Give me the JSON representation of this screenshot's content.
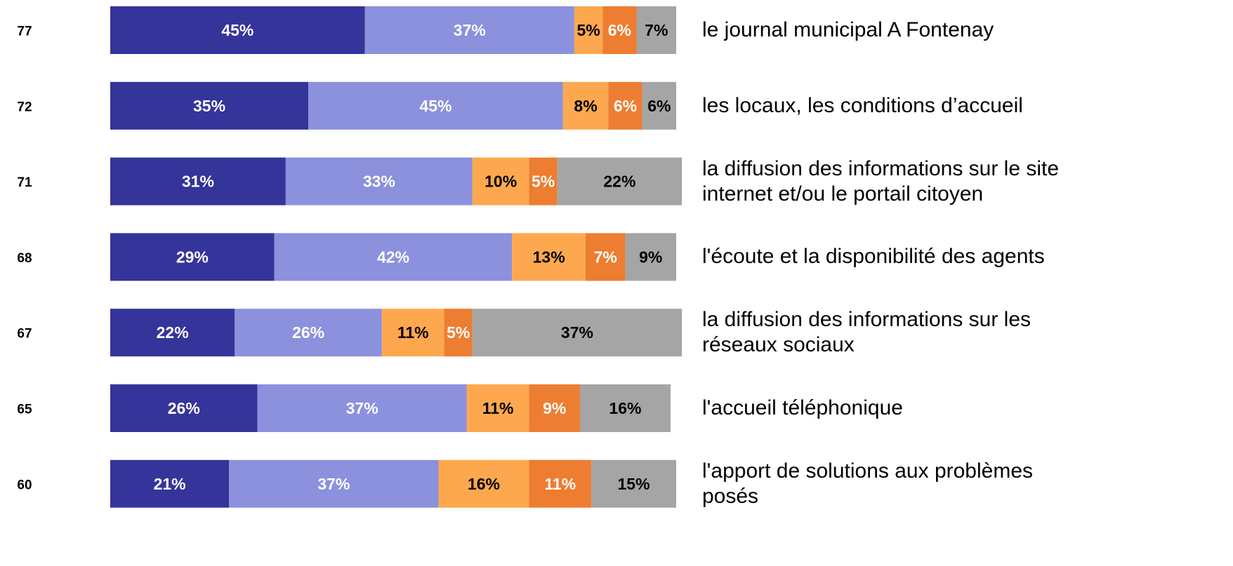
{
  "chart_data": {
    "type": "stacked-bar-horizontal",
    "categories": [
      "le journal municipal A Fontenay",
      "les locaux, les conditions d’accueil",
      "la diffusion des informations sur le site\ninternet et/ou le portail citoyen",
      "l'écoute et la disponibilité des agents",
      "la diffusion des informations sur les\nréseaux sociaux",
      "l'accueil téléphonique",
      "l'apport de solutions aux problèmes\nposés"
    ],
    "scores": [
      77,
      72,
      71,
      68,
      67,
      65,
      60
    ],
    "xlim": [
      0,
      100
    ],
    "series": [
      {
        "color": "#35349a",
        "values": [
          45,
          35,
          31,
          29,
          22,
          26,
          21
        ],
        "value_labels": [
          "45%",
          "35%",
          "31%",
          "29%",
          "22%",
          "26%",
          "21%"
        ]
      },
      {
        "color": "#8b91dd",
        "values": [
          37,
          45,
          33,
          42,
          26,
          37,
          37
        ],
        "value_labels": [
          "37%",
          "45%",
          "33%",
          "42%",
          "26%",
          "37%",
          "37%"
        ]
      },
      {
        "color": "#fda84f",
        "values": [
          5,
          8,
          10,
          13,
          11,
          11,
          16
        ],
        "value_labels": [
          "5%",
          "8%",
          "10%",
          "13%",
          "11%",
          "11%",
          "16%"
        ]
      },
      {
        "color": "#ed7d31",
        "values": [
          6,
          6,
          5,
          7,
          5,
          9,
          11
        ],
        "value_labels": [
          "6%",
          "6%",
          "5%",
          "7%",
          "5%",
          "9%",
          "11%"
        ]
      },
      {
        "color": "#a5a5a5",
        "values": [
          7,
          6,
          22,
          9,
          37,
          16,
          15
        ],
        "value_labels": [
          "7%",
          "6%",
          "22%",
          "9%",
          "37%",
          "16%",
          "15%"
        ]
      }
    ]
  }
}
